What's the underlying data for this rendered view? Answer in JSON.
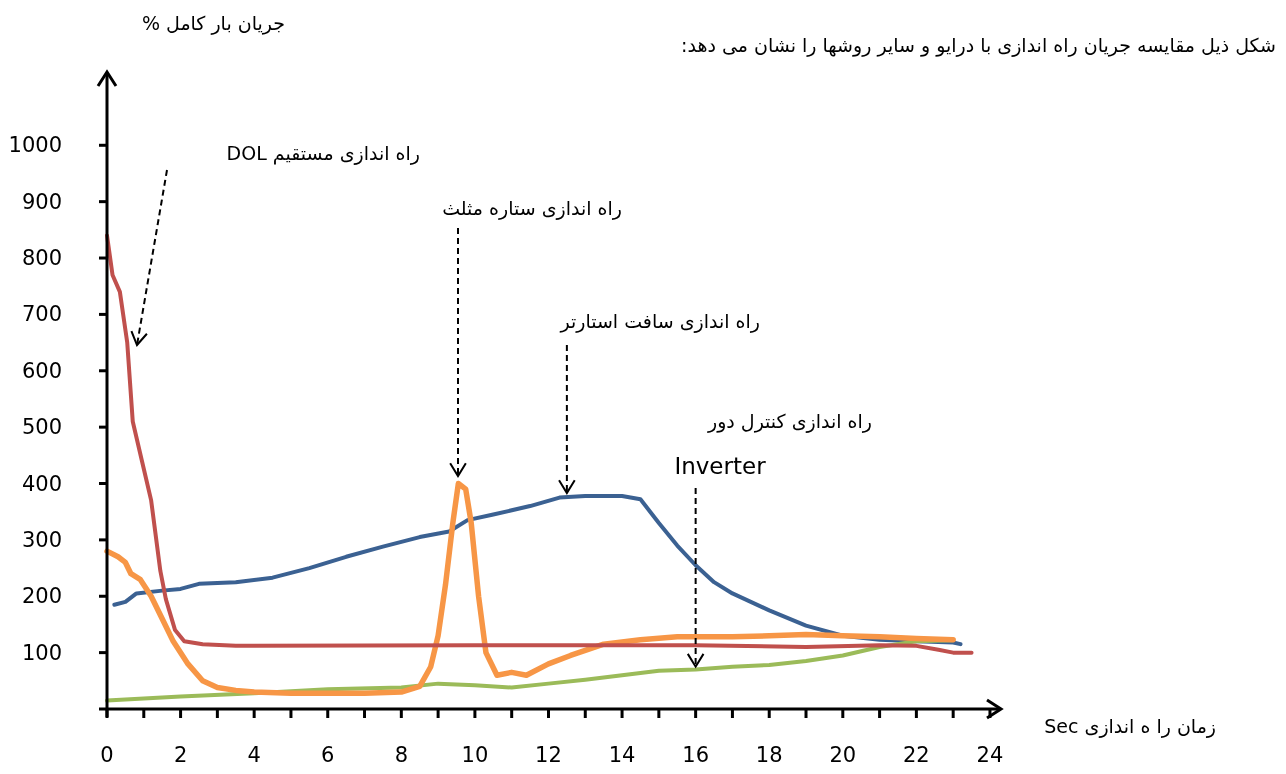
{
  "chart_data": {
    "type": "line",
    "title": "شکل ذیل مقایسه جریان راه اندازی با درایو و سایر روشها را نشان می دهد:",
    "ylabel": "جریان بار کامل %",
    "xlabel": "زمان را ه اندازی Sec",
    "xlim": [
      0,
      24.3
    ],
    "ylim": [
      0,
      1130
    ],
    "xticks": [
      0,
      {
        "value": 1,
        "label": null
      },
      2,
      {
        "value": 3,
        "label": null
      },
      4,
      {
        "value": 5,
        "label": null
      },
      6,
      {
        "value": 7,
        "label": null
      },
      8,
      {
        "value": 9,
        "label": null
      },
      10,
      {
        "value": 11,
        "label": null
      },
      12,
      {
        "value": 13,
        "label": null
      },
      14,
      {
        "value": 15,
        "label": null
      },
      16,
      {
        "value": 17,
        "label": null
      },
      18,
      {
        "value": 19,
        "label": null
      },
      20,
      {
        "value": 21,
        "label": null
      },
      22,
      {
        "value": 23,
        "label": null
      },
      24
    ],
    "yticks": [
      100,
      200,
      300,
      400,
      500,
      600,
      700,
      800,
      900,
      1000
    ],
    "grid": false,
    "marker": "none",
    "line_style": "solid",
    "series": [
      {
        "color": "#3b6192",
        "x": [
          0.2,
          0.5,
          0.8,
          1.5,
          2,
          2.5,
          3.5,
          4.5,
          5.5,
          6.5,
          7.5,
          8.5,
          9.3,
          9.8,
          10.5,
          11.5,
          12.3,
          13,
          14,
          14.5,
          15,
          15.5,
          16,
          16.5,
          17,
          18,
          19,
          20,
          21,
          22,
          23,
          23.2
        ],
        "values": [
          185,
          190,
          205,
          210,
          213,
          222,
          225,
          233,
          250,
          270,
          288,
          305,
          315,
          335,
          345,
          360,
          375,
          378,
          378,
          372,
          330,
          290,
          255,
          225,
          205,
          175,
          148,
          130,
          123,
          120,
          118,
          115
        ]
      },
      {
        "color": "#9bbb59",
        "x": [
          0,
          2,
          4,
          6,
          8,
          9,
          10,
          11,
          12,
          13,
          14,
          15,
          16,
          17,
          18,
          19,
          20,
          21,
          22,
          23
        ],
        "values": [
          15,
          22,
          28,
          35,
          38,
          45,
          42,
          38,
          45,
          52,
          60,
          68,
          70,
          75,
          78,
          85,
          95,
          110,
          120,
          122
        ]
      },
      {
        "color": "#f79646",
        "x": [
          0,
          0.3,
          0.5,
          0.65,
          0.9,
          1.2,
          1.5,
          1.8,
          2.2,
          2.6,
          3,
          3.5,
          4,
          5,
          7,
          8,
          8.5,
          8.8,
          9,
          9.2,
          9.4,
          9.55,
          9.75,
          9.9,
          10.1,
          10.3,
          10.6,
          11,
          11.4,
          12,
          12.6,
          13.5,
          14.5,
          15.5,
          17,
          18,
          19,
          20,
          21,
          22,
          23
        ],
        "values": [
          280,
          270,
          260,
          240,
          230,
          200,
          160,
          120,
          80,
          50,
          38,
          33,
          30,
          28,
          28,
          30,
          40,
          75,
          130,
          220,
          330,
          400,
          390,
          330,
          200,
          100,
          60,
          65,
          60,
          80,
          95,
          115,
          123,
          128,
          128,
          130,
          132,
          130,
          128,
          125,
          123
        ]
      },
      {
        "color": "#c0504d",
        "x": [
          0,
          0.15,
          0.35,
          0.55,
          0.7,
          0.95,
          1.2,
          1.45,
          1.6,
          1.85,
          2.1,
          2.6,
          3.5,
          10,
          16,
          19,
          21,
          22,
          22.6,
          23,
          23.5
        ],
        "values": [
          840,
          770,
          740,
          650,
          510,
          440,
          370,
          245,
          195,
          140,
          120,
          115,
          112,
          113,
          113,
          110,
          113,
          112,
          105,
          100,
          100
        ]
      }
    ],
    "annotations": [
      "راه اندازی مستقیم DOL",
      "راه اندازی ستاره مثلث",
      {
        "text": "راه اندازی سافت استارتر",
        "x": 12.5,
        "y": 376
      },
      {
        "text": "راه اندازی کنترل دور\nInverter",
        "x": 16,
        "y": 68
      }
    ]
  }
}
